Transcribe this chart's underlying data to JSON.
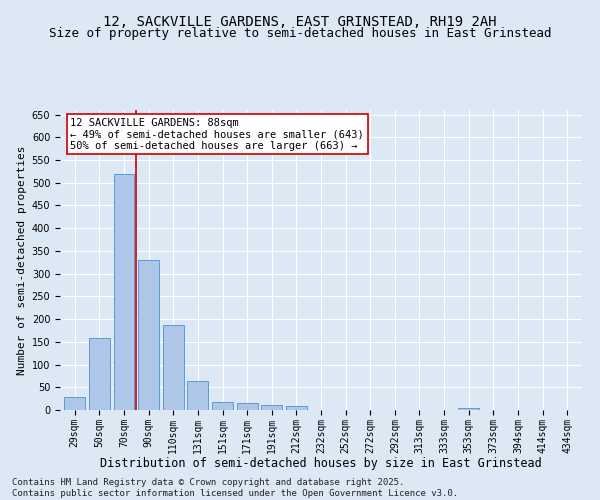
{
  "title": "12, SACKVILLE GARDENS, EAST GRINSTEAD, RH19 2AH",
  "subtitle": "Size of property relative to semi-detached houses in East Grinstead",
  "xlabel": "Distribution of semi-detached houses by size in East Grinstead",
  "ylabel": "Number of semi-detached properties",
  "categories": [
    "29sqm",
    "50sqm",
    "70sqm",
    "90sqm",
    "110sqm",
    "131sqm",
    "151sqm",
    "171sqm",
    "191sqm",
    "212sqm",
    "232sqm",
    "252sqm",
    "272sqm",
    "292sqm",
    "313sqm",
    "333sqm",
    "353sqm",
    "373sqm",
    "394sqm",
    "414sqm",
    "434sqm"
  ],
  "values": [
    28,
    158,
    520,
    330,
    188,
    63,
    18,
    15,
    10,
    8,
    0,
    0,
    0,
    0,
    0,
    0,
    5,
    0,
    0,
    0,
    0
  ],
  "bar_color": "#aec6e8",
  "bar_edge_color": "#5b9bd5",
  "vline_x": 2.5,
  "vline_color": "#cc0000",
  "annotation_text": "12 SACKVILLE GARDENS: 88sqm\n← 49% of semi-detached houses are smaller (643)\n50% of semi-detached houses are larger (663) →",
  "annotation_box_color": "#ffffff",
  "annotation_box_edge_color": "#cc0000",
  "ylim": [
    0,
    660
  ],
  "yticks": [
    0,
    50,
    100,
    150,
    200,
    250,
    300,
    350,
    400,
    450,
    500,
    550,
    600,
    650
  ],
  "bg_color": "#dde8f5",
  "plot_bg_color": "#dde8f5",
  "footer": "Contains HM Land Registry data © Crown copyright and database right 2025.\nContains public sector information licensed under the Open Government Licence v3.0.",
  "title_fontsize": 10,
  "subtitle_fontsize": 9,
  "xlabel_fontsize": 8.5,
  "ylabel_fontsize": 8,
  "tick_fontsize": 7,
  "annotation_fontsize": 7.5,
  "footer_fontsize": 6.5
}
